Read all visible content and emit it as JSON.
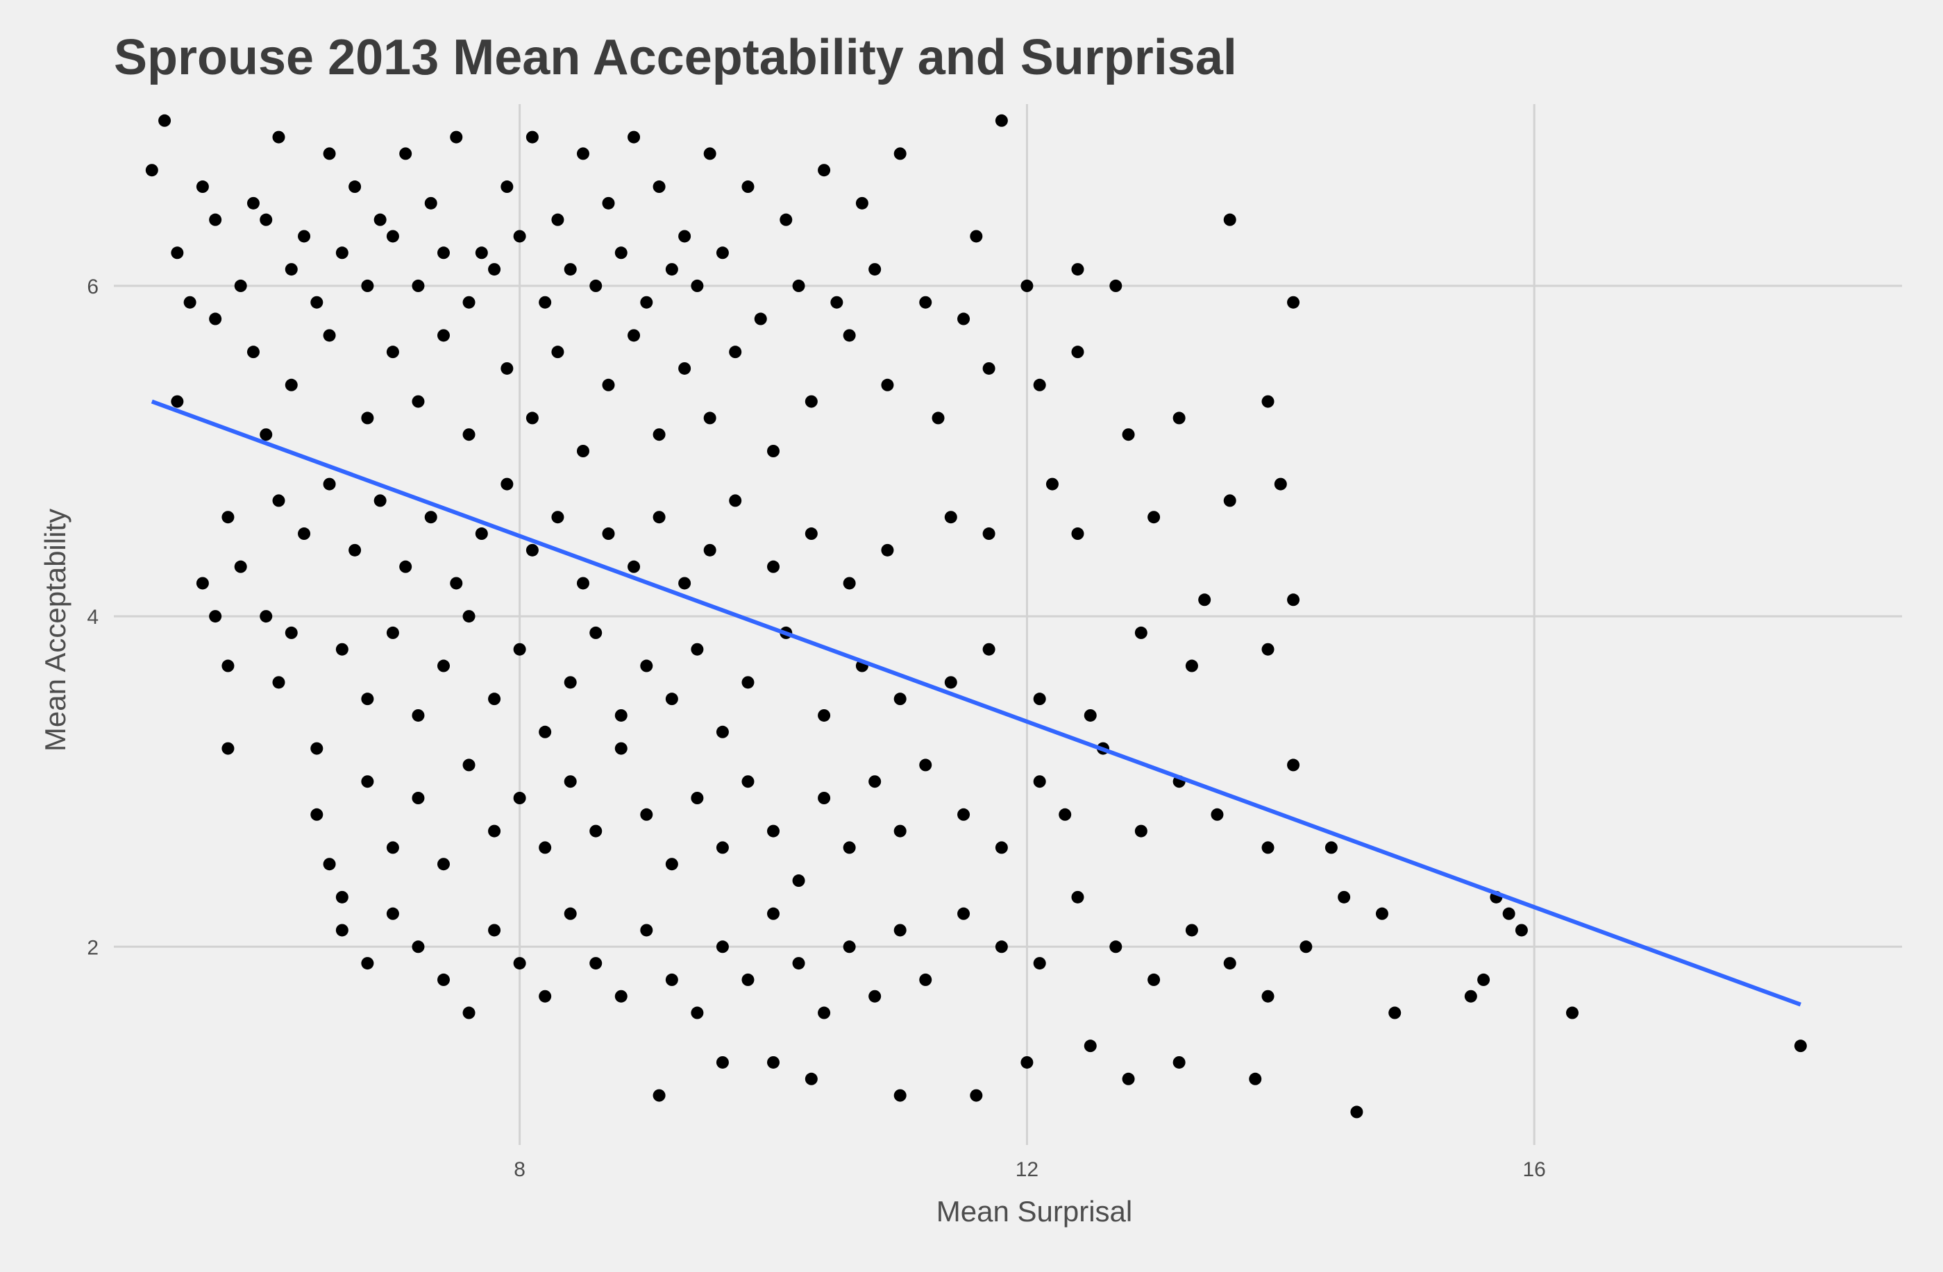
{
  "chart_data": {
    "type": "scatter",
    "title": "Sprouse 2013 Mean Acceptability and Surprisal",
    "xlabel": "Mean Surprisal",
    "ylabel": "Mean Acceptability",
    "xlim": [
      4.8,
      18.9
    ],
    "ylim": [
      0.8,
      7.1
    ],
    "x_ticks": [
      8,
      12,
      16
    ],
    "y_ticks": [
      2,
      4,
      6
    ],
    "x_tick_labels": [
      "8",
      "12",
      "16"
    ],
    "y_tick_labels": [
      "2",
      "4",
      "6"
    ],
    "grid": true,
    "colors": {
      "background": "#f0f0f0",
      "points": "#000000",
      "fit_line": "#3366ff",
      "grid": "#d2d2d2"
    },
    "series": [
      {
        "kind": "points",
        "points": [
          [
            5.5,
            6.6
          ],
          [
            5.6,
            6.4
          ],
          [
            5.9,
            6.5
          ],
          [
            6.1,
            6.9
          ],
          [
            6.3,
            6.3
          ],
          [
            6.5,
            6.8
          ],
          [
            6.7,
            6.6
          ],
          [
            6.9,
            6.4
          ],
          [
            7.1,
            6.8
          ],
          [
            7.3,
            6.5
          ],
          [
            7.5,
            6.9
          ],
          [
            7.7,
            6.2
          ],
          [
            7.9,
            6.6
          ],
          [
            8.1,
            6.9
          ],
          [
            8.3,
            6.4
          ],
          [
            8.5,
            6.8
          ],
          [
            8.7,
            6.5
          ],
          [
            8.9,
            6.9
          ],
          [
            9.1,
            6.6
          ],
          [
            9.3,
            6.3
          ],
          [
            9.5,
            6.8
          ],
          [
            9.8,
            6.6
          ],
          [
            10.1,
            6.4
          ],
          [
            10.4,
            6.7
          ],
          [
            10.7,
            6.5
          ],
          [
            11.0,
            6.8
          ],
          [
            11.6,
            6.3
          ],
          [
            11.8,
            7.0
          ],
          [
            5.1,
            6.7
          ],
          [
            5.2,
            7.0
          ],
          [
            5.3,
            6.2
          ],
          [
            5.4,
            5.9
          ],
          [
            5.8,
            6.0
          ],
          [
            6.0,
            6.4
          ],
          [
            6.2,
            6.1
          ],
          [
            6.4,
            5.9
          ],
          [
            6.6,
            6.2
          ],
          [
            6.8,
            6.0
          ],
          [
            7.0,
            6.3
          ],
          [
            7.2,
            6.0
          ],
          [
            7.4,
            6.2
          ],
          [
            7.6,
            5.9
          ],
          [
            7.8,
            6.1
          ],
          [
            8.0,
            6.3
          ],
          [
            8.2,
            5.9
          ],
          [
            8.4,
            6.1
          ],
          [
            8.6,
            6.0
          ],
          [
            8.8,
            6.2
          ],
          [
            9.0,
            5.9
          ],
          [
            9.2,
            6.1
          ],
          [
            9.4,
            6.0
          ],
          [
            9.6,
            6.2
          ],
          [
            9.9,
            5.8
          ],
          [
            10.2,
            6.0
          ],
          [
            10.5,
            5.9
          ],
          [
            10.8,
            6.1
          ],
          [
            11.2,
            5.9
          ],
          [
            11.5,
            5.8
          ],
          [
            12.0,
            6.0
          ],
          [
            12.4,
            6.1
          ],
          [
            12.7,
            6.0
          ],
          [
            13.6,
            6.4
          ],
          [
            14.1,
            5.9
          ],
          [
            5.6,
            5.8
          ],
          [
            5.9,
            5.6
          ],
          [
            6.2,
            5.4
          ],
          [
            6.5,
            5.7
          ],
          [
            6.8,
            5.2
          ],
          [
            7.0,
            5.6
          ],
          [
            7.2,
            5.3
          ],
          [
            7.4,
            5.7
          ],
          [
            7.6,
            5.1
          ],
          [
            7.9,
            5.5
          ],
          [
            8.1,
            5.2
          ],
          [
            8.3,
            5.6
          ],
          [
            8.5,
            5.0
          ],
          [
            8.7,
            5.4
          ],
          [
            8.9,
            5.7
          ],
          [
            9.1,
            5.1
          ],
          [
            9.3,
            5.5
          ],
          [
            9.5,
            5.2
          ],
          [
            9.7,
            5.6
          ],
          [
            10.0,
            5.0
          ],
          [
            10.3,
            5.3
          ],
          [
            10.6,
            5.7
          ],
          [
            10.9,
            5.4
          ],
          [
            11.3,
            5.2
          ],
          [
            11.7,
            5.5
          ],
          [
            12.1,
            5.4
          ],
          [
            12.4,
            5.6
          ],
          [
            12.8,
            5.1
          ],
          [
            13.2,
            5.2
          ],
          [
            13.9,
            5.3
          ],
          [
            14.0,
            4.8
          ],
          [
            5.3,
            5.3
          ],
          [
            5.5,
            4.2
          ],
          [
            5.6,
            4.0
          ],
          [
            5.7,
            4.6
          ],
          [
            5.8,
            4.3
          ],
          [
            6.0,
            5.1
          ],
          [
            6.1,
            4.7
          ],
          [
            6.3,
            4.5
          ],
          [
            6.5,
            4.8
          ],
          [
            6.7,
            4.4
          ],
          [
            6.9,
            4.7
          ],
          [
            7.1,
            4.3
          ],
          [
            7.3,
            4.6
          ],
          [
            7.5,
            4.2
          ],
          [
            7.7,
            4.5
          ],
          [
            7.9,
            4.8
          ],
          [
            8.1,
            4.4
          ],
          [
            8.3,
            4.6
          ],
          [
            8.5,
            4.2
          ],
          [
            8.7,
            4.5
          ],
          [
            8.9,
            4.3
          ],
          [
            9.1,
            4.6
          ],
          [
            9.3,
            4.2
          ],
          [
            9.5,
            4.4
          ],
          [
            9.7,
            4.7
          ],
          [
            10.0,
            4.3
          ],
          [
            10.3,
            4.5
          ],
          [
            10.6,
            4.2
          ],
          [
            10.9,
            4.4
          ],
          [
            11.4,
            4.6
          ],
          [
            11.7,
            4.5
          ],
          [
            12.2,
            4.8
          ],
          [
            12.4,
            4.5
          ],
          [
            13.0,
            4.6
          ],
          [
            13.6,
            4.7
          ],
          [
            13.9,
            3.8
          ],
          [
            14.1,
            4.1
          ],
          [
            5.7,
            3.7
          ],
          [
            5.7,
            3.2
          ],
          [
            6.0,
            4.0
          ],
          [
            6.1,
            3.6
          ],
          [
            6.2,
            3.9
          ],
          [
            6.4,
            3.2
          ],
          [
            6.6,
            3.8
          ],
          [
            6.8,
            3.5
          ],
          [
            7.0,
            3.9
          ],
          [
            7.2,
            3.4
          ],
          [
            7.4,
            3.7
          ],
          [
            7.6,
            4.0
          ],
          [
            7.8,
            3.5
          ],
          [
            8.0,
            3.8
          ],
          [
            8.2,
            3.3
          ],
          [
            8.4,
            3.6
          ],
          [
            8.6,
            3.9
          ],
          [
            8.8,
            3.4
          ],
          [
            9.0,
            3.7
          ],
          [
            9.2,
            3.5
          ],
          [
            9.4,
            3.8
          ],
          [
            9.6,
            3.3
          ],
          [
            9.8,
            3.6
          ],
          [
            10.1,
            3.9
          ],
          [
            10.4,
            3.4
          ],
          [
            10.7,
            3.7
          ],
          [
            11.0,
            3.5
          ],
          [
            11.4,
            3.6
          ],
          [
            11.7,
            3.8
          ],
          [
            12.1,
            3.5
          ],
          [
            12.5,
            3.4
          ],
          [
            12.9,
            3.9
          ],
          [
            13.3,
            3.7
          ],
          [
            13.4,
            4.1
          ],
          [
            6.4,
            2.8
          ],
          [
            6.5,
            2.5
          ],
          [
            6.6,
            2.3
          ],
          [
            6.8,
            3.0
          ],
          [
            7.0,
            2.6
          ],
          [
            7.2,
            2.9
          ],
          [
            7.4,
            2.5
          ],
          [
            7.6,
            3.1
          ],
          [
            7.8,
            2.7
          ],
          [
            8.0,
            2.9
          ],
          [
            8.2,
            2.6
          ],
          [
            8.4,
            3.0
          ],
          [
            8.6,
            2.7
          ],
          [
            8.8,
            3.2
          ],
          [
            9.0,
            2.8
          ],
          [
            9.2,
            2.5
          ],
          [
            9.4,
            2.9
          ],
          [
            9.6,
            2.6
          ],
          [
            9.8,
            3.0
          ],
          [
            10.0,
            2.7
          ],
          [
            10.2,
            2.4
          ],
          [
            10.4,
            2.9
          ],
          [
            10.6,
            2.6
          ],
          [
            10.8,
            3.0
          ],
          [
            11.0,
            2.7
          ],
          [
            11.2,
            3.1
          ],
          [
            11.5,
            2.8
          ],
          [
            11.8,
            2.6
          ],
          [
            12.1,
            3.0
          ],
          [
            12.3,
            2.8
          ],
          [
            12.6,
            3.2
          ],
          [
            12.9,
            2.7
          ],
          [
            13.2,
            3.0
          ],
          [
            13.5,
            2.8
          ],
          [
            13.9,
            2.6
          ],
          [
            14.1,
            3.1
          ],
          [
            14.4,
            2.6
          ],
          [
            6.6,
            2.1
          ],
          [
            6.8,
            1.9
          ],
          [
            7.0,
            2.2
          ],
          [
            7.2,
            2.0
          ],
          [
            7.4,
            1.8
          ],
          [
            7.6,
            1.6
          ],
          [
            7.8,
            2.1
          ],
          [
            8.0,
            1.9
          ],
          [
            8.2,
            1.7
          ],
          [
            8.4,
            2.2
          ],
          [
            8.6,
            1.9
          ],
          [
            8.8,
            1.7
          ],
          [
            9.0,
            2.1
          ],
          [
            9.2,
            1.8
          ],
          [
            9.4,
            1.6
          ],
          [
            9.6,
            2.0
          ],
          [
            9.8,
            1.8
          ],
          [
            10.0,
            2.2
          ],
          [
            10.2,
            1.9
          ],
          [
            10.4,
            1.6
          ],
          [
            10.6,
            2.0
          ],
          [
            10.8,
            1.7
          ],
          [
            11.0,
            2.1
          ],
          [
            11.2,
            1.8
          ],
          [
            11.5,
            2.2
          ],
          [
            11.8,
            2.0
          ],
          [
            12.1,
            1.9
          ],
          [
            12.4,
            2.3
          ],
          [
            12.7,
            2.0
          ],
          [
            13.0,
            1.8
          ],
          [
            13.3,
            2.1
          ],
          [
            13.6,
            1.9
          ],
          [
            13.9,
            1.7
          ],
          [
            14.2,
            2.0
          ],
          [
            14.5,
            2.3
          ],
          [
            14.8,
            2.2
          ],
          [
            15.7,
            2.3
          ],
          [
            15.8,
            2.2
          ],
          [
            15.9,
            2.1
          ],
          [
            15.6,
            1.8
          ],
          [
            15.5,
            1.7
          ],
          [
            16.3,
            1.6
          ],
          [
            14.9,
            1.6
          ],
          [
            9.1,
            1.1
          ],
          [
            9.6,
            1.3
          ],
          [
            10.0,
            1.3
          ],
          [
            10.3,
            1.2
          ],
          [
            11.0,
            1.1
          ],
          [
            11.6,
            1.1
          ],
          [
            12.0,
            1.3
          ],
          [
            12.5,
            1.4
          ],
          [
            12.8,
            1.2
          ],
          [
            13.2,
            1.3
          ],
          [
            13.8,
            1.2
          ],
          [
            14.6,
            1.0
          ],
          [
            18.1,
            1.4
          ]
        ]
      },
      {
        "kind": "line",
        "name": "",
        "x": [
          5.1,
          18.1
        ],
        "y": [
          5.3,
          1.65
        ]
      }
    ]
  }
}
